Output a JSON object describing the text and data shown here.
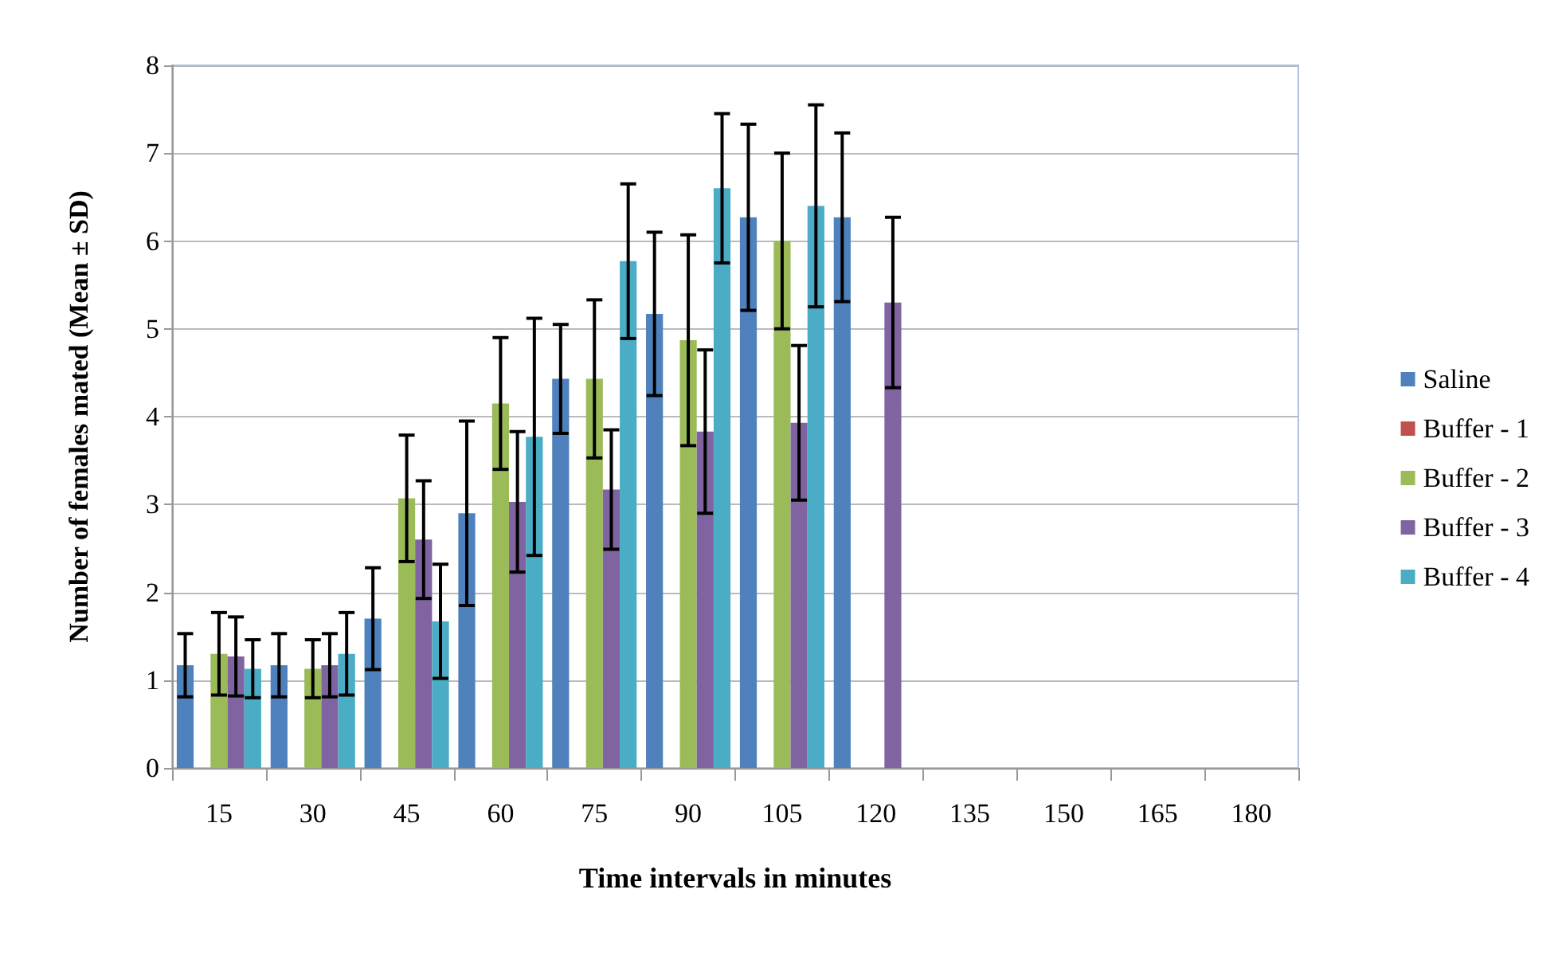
{
  "chart_data": {
    "type": "bar",
    "xlabel": "Time intervals in minutes",
    "ylabel": "Number of females mated (Mean ± SD)",
    "categories": [
      "15",
      "30",
      "45",
      "60",
      "75",
      "90",
      "105",
      "120",
      "135",
      "150",
      "165",
      "180"
    ],
    "series": [
      {
        "name": "Saline",
        "color": "#4f81bd",
        "values": [
          1.17,
          1.17,
          1.7,
          2.9,
          4.43,
          5.17,
          6.27,
          6.27,
          null,
          null,
          null,
          null
        ],
        "errors": [
          0.36,
          0.36,
          0.58,
          1.05,
          0.62,
          0.93,
          1.06,
          0.96,
          null,
          null,
          null,
          null
        ]
      },
      {
        "name": "Buffer - 1",
        "color": "#c0504d",
        "values": [
          null,
          null,
          null,
          null,
          null,
          null,
          null,
          null,
          null,
          null,
          null,
          null
        ]
      },
      {
        "name": "Buffer - 2",
        "color": "#9bbb59",
        "values": [
          1.3,
          1.13,
          3.07,
          4.15,
          4.43,
          4.87,
          6.0,
          null,
          null,
          null,
          null,
          null
        ],
        "errors": [
          0.47,
          0.33,
          0.72,
          0.75,
          0.9,
          1.2,
          1.0,
          null,
          null,
          null,
          null,
          null
        ]
      },
      {
        "name": "Buffer - 3",
        "color": "#8064a2",
        "values": [
          1.27,
          1.17,
          2.6,
          3.03,
          3.17,
          3.83,
          3.93,
          5.3,
          null,
          null,
          null,
          null
        ],
        "errors": [
          0.45,
          0.36,
          0.67,
          0.8,
          0.68,
          0.93,
          0.88,
          0.97,
          null,
          null,
          null,
          null
        ]
      },
      {
        "name": "Buffer - 4",
        "color": "#4bacc6",
        "values": [
          1.13,
          1.3,
          1.67,
          3.77,
          5.77,
          6.6,
          6.4,
          null,
          null,
          null,
          null,
          null
        ],
        "errors": [
          0.33,
          0.47,
          0.65,
          1.35,
          0.88,
          0.85,
          1.15,
          null,
          null,
          null,
          null,
          null
        ]
      }
    ],
    "ylim": [
      0,
      8
    ],
    "yticks": [
      0,
      1,
      2,
      3,
      4,
      5,
      6,
      7,
      8
    ],
    "grid": "y",
    "legend": "right"
  }
}
